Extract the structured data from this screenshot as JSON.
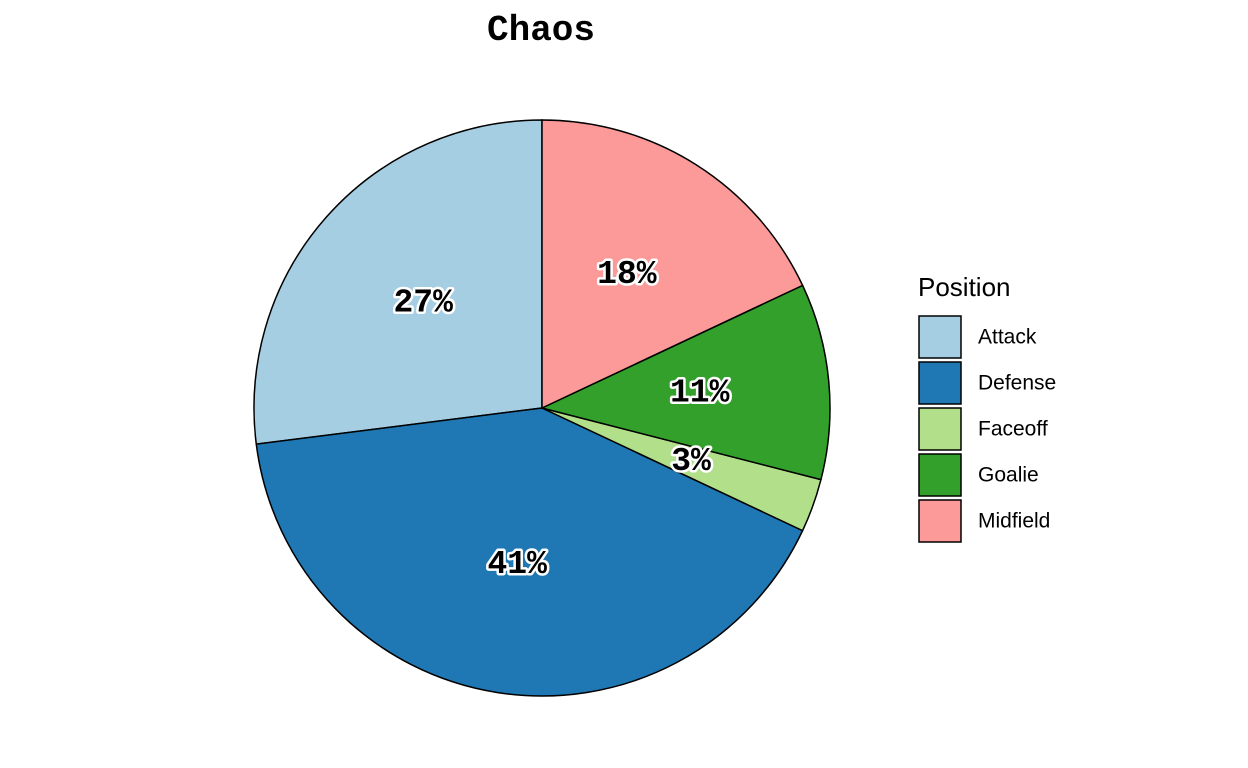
{
  "chart_data": {
    "type": "pie",
    "title": "Chaos",
    "legend_title": "Position",
    "legend_position": "right",
    "slices": [
      {
        "name": "Attack",
        "value": 27,
        "label": "27%",
        "color": "#a6cee3"
      },
      {
        "name": "Defense",
        "value": 41,
        "label": "41%",
        "color": "#1f78b4"
      },
      {
        "name": "Faceoff",
        "value": 3,
        "label": "3%",
        "color": "#b2df8a"
      },
      {
        "name": "Goalie",
        "value": 11,
        "label": "11%",
        "color": "#33a02c"
      },
      {
        "name": "Midfield",
        "value": 18,
        "label": "18%",
        "color": "#fb9a99"
      }
    ]
  }
}
